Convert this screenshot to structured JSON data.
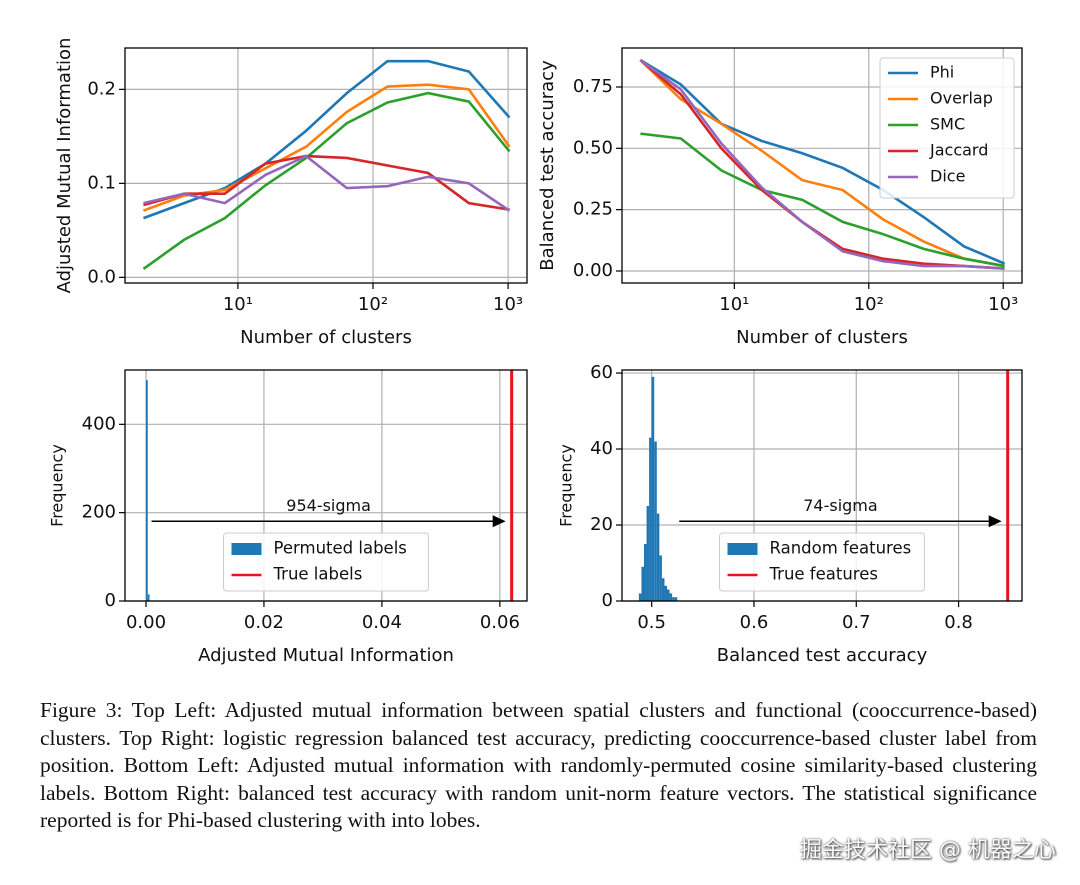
{
  "chart_data": [
    {
      "type": "line",
      "xscale": "log",
      "xlabel": "Number of clusters",
      "ylabel": "Adjusted Mutual Information",
      "x": [
        2,
        4,
        8,
        16,
        32,
        64,
        128,
        256,
        512,
        1024
      ],
      "xlim": [
        1.46,
        1380
      ],
      "xticks": [
        {
          "value": 10,
          "label": "10¹"
        },
        {
          "value": 100,
          "label": "10²"
        },
        {
          "value": 1000,
          "label": "10³"
        }
      ],
      "ylim": [
        -0.006,
        0.244
      ],
      "yticks": [
        {
          "value": 0,
          "label": "0.0"
        },
        0.1,
        0.2
      ],
      "grid": true,
      "series": [
        {
          "name": "Phi",
          "color": "#1f77b4",
          "values": [
            0.063,
            0.079,
            0.095,
            0.121,
            0.156,
            0.196,
            0.23,
            0.23,
            0.219,
            0.17
          ]
        },
        {
          "name": "Overlap",
          "color": "#ff7f0e",
          "values": [
            0.071,
            0.087,
            0.093,
            0.116,
            0.139,
            0.176,
            0.203,
            0.205,
            0.2,
            0.139
          ]
        },
        {
          "name": "SMC",
          "color": "#2ca02c",
          "values": [
            0.009,
            0.04,
            0.063,
            0.098,
            0.127,
            0.164,
            0.186,
            0.196,
            0.187,
            0.134
          ]
        },
        {
          "name": "Jaccard",
          "color": "#d62728",
          "values": [
            0.077,
            0.089,
            0.089,
            0.121,
            0.129,
            0.127,
            0.119,
            0.111,
            0.079,
            0.072
          ]
        },
        {
          "name": "Dice",
          "color": "#9467bd",
          "values": [
            0.079,
            0.089,
            0.079,
            0.109,
            0.129,
            0.095,
            0.097,
            0.107,
            0.1,
            0.071
          ]
        }
      ]
    },
    {
      "type": "line",
      "xscale": "log",
      "xlabel": "Number of clusters",
      "ylabel": "Balanced test accuracy",
      "legend": "upper right",
      "x": [
        2,
        4,
        8,
        16,
        32,
        64,
        128,
        256,
        512,
        1024
      ],
      "xlim": [
        1.46,
        1380
      ],
      "xticks": [
        {
          "value": 10,
          "label": "10¹"
        },
        {
          "value": 100,
          "label": "10²"
        },
        {
          "value": 1000,
          "label": "10³"
        }
      ],
      "ylim": [
        -0.049,
        0.909
      ],
      "yticks": [
        {
          "value": 0,
          "label": "0.00"
        },
        0.25,
        {
          "value": 0.5,
          "label": "0.50"
        },
        0.75
      ],
      "grid": true,
      "series": [
        {
          "name": "Phi",
          "color": "#1f77b4",
          "values": [
            0.86,
            0.76,
            0.6,
            0.53,
            0.48,
            0.42,
            0.33,
            0.22,
            0.1,
            0.03
          ]
        },
        {
          "name": "Overlap",
          "color": "#ff7f0e",
          "values": [
            0.86,
            0.7,
            0.6,
            0.49,
            0.37,
            0.33,
            0.21,
            0.12,
            0.05,
            0.02
          ]
        },
        {
          "name": "SMC",
          "color": "#2ca02c",
          "values": [
            0.56,
            0.54,
            0.41,
            0.33,
            0.29,
            0.2,
            0.15,
            0.09,
            0.05,
            0.02
          ]
        },
        {
          "name": "Jaccard",
          "color": "#d62728",
          "values": [
            0.86,
            0.72,
            0.5,
            0.33,
            0.2,
            0.09,
            0.05,
            0.03,
            0.02,
            0.01
          ]
        },
        {
          "name": "Dice",
          "color": "#9467bd",
          "values": [
            0.86,
            0.74,
            0.52,
            0.34,
            0.2,
            0.08,
            0.04,
            0.02,
            0.02,
            0.01
          ]
        }
      ]
    },
    {
      "type": "histogram",
      "xlabel": "Adjusted Mutual Information",
      "ylabel": "Frequency",
      "legend": "lower center",
      "name": "Permuted labels",
      "color": "#1f77b4",
      "bins": [
        0,
        0.0003,
        0.0006
      ],
      "counts": [
        500,
        15
      ],
      "reference_line": {
        "name": "True labels",
        "value": 0.062,
        "color": "#e8141c"
      },
      "annotation": "954-sigma",
      "xlim": [
        -0.00356,
        0.0646
      ],
      "xticks": [
        {
          "value": 0,
          "label": "0.00"
        },
        0.02,
        0.04,
        0.06
      ],
      "ylim": [
        0,
        523
      ],
      "yticks": [
        0,
        200,
        400
      ],
      "grid": true
    },
    {
      "type": "histogram",
      "xlabel": "Balanced test accuracy",
      "ylabel": "Frequency",
      "legend": "lower center",
      "name": "Random features",
      "color": "#1f77b4",
      "bins": [
        0.4875,
        0.49,
        0.4925,
        0.495,
        0.4975,
        0.5,
        0.5025,
        0.505,
        0.5075,
        0.51,
        0.5125,
        0.515,
        0.5175,
        0.52,
        0.5225,
        0.525
      ],
      "counts": [
        2,
        9,
        15,
        25,
        43,
        59,
        42,
        23,
        12,
        6,
        4,
        3,
        2,
        1,
        1
      ],
      "reference_line": {
        "name": "True features",
        "value": 0.848,
        "color": "#e8141c"
      },
      "annotation": "74-sigma",
      "xlim": [
        0.471,
        0.862
      ],
      "xticks": [
        0.5,
        0.6,
        0.7,
        0.8
      ],
      "ylim": [
        0,
        60.8
      ],
      "yticks": [
        0,
        20,
        40,
        60
      ],
      "grid": true
    }
  ],
  "caption": "Figure 3:  Top Left:  Adjusted mutual information between spatial clusters and functional (cooccurrence-based) clusters.  Top Right: logistic regression balanced test accuracy, predicting cooccurrence-based cluster label from position.  Bottom Left: Adjusted mutual information with randomly-permuted cosine similarity-based clustering labels. Bottom Right: balanced test accuracy with random unit-norm feature vectors. The statistical significance reported is for Phi-based clustering with into lobes.",
  "watermark": "掘金技术社区 @ 机器之心"
}
